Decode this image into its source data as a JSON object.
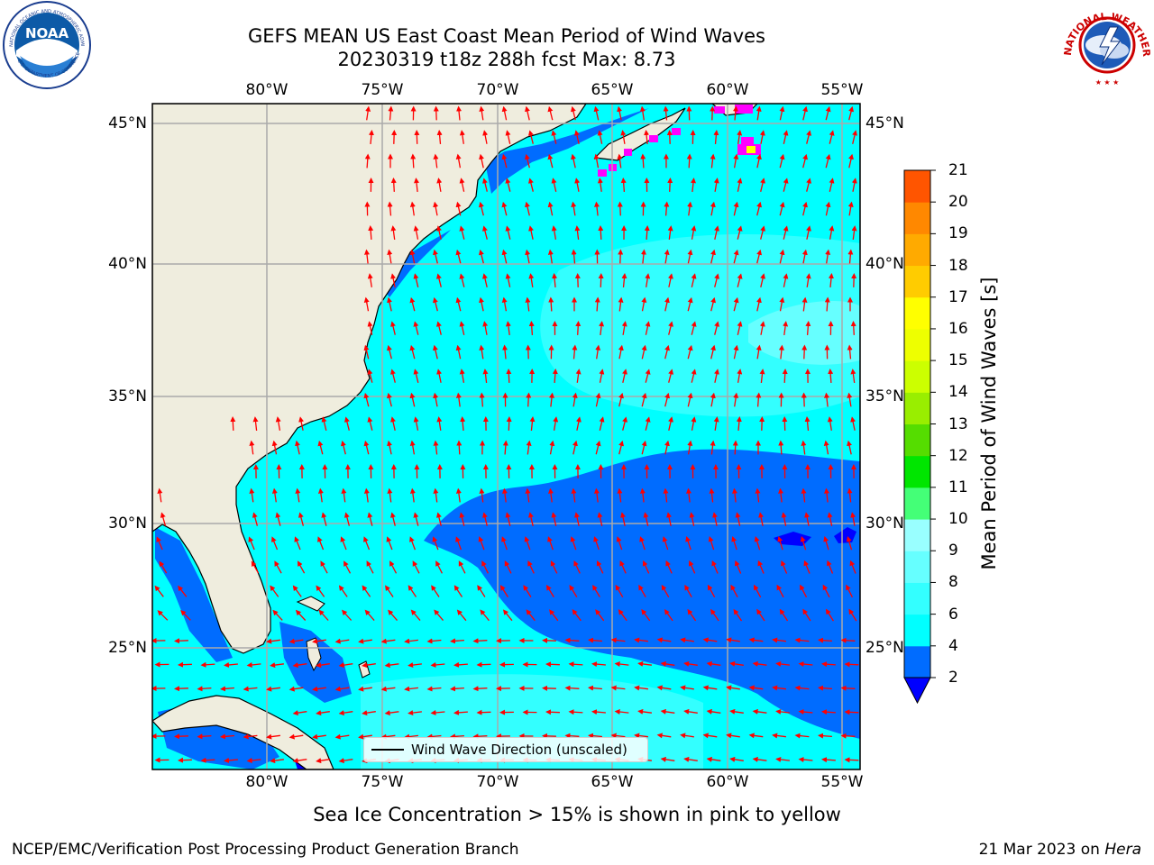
{
  "header": {
    "title_line1": "GEFS MEAN US East Coast Mean Period of Wind Waves",
    "title_line2": "20230319 t18z 288h fcst   Max: 8.73"
  },
  "logos": {
    "left": {
      "name": "NOAA",
      "arc_text": "NATIONAL OCEANIC AND ATMOSPHERIC ADMINISTRATION",
      "bottom_text": "U.S. DEPARTMENT OF COMMERCE"
    },
    "right": {
      "arc_text": "NATIONAL WEATHER SERVICE"
    }
  },
  "map": {
    "lon_labels": [
      "80°W",
      "75°W",
      "70°W",
      "65°W",
      "60°W",
      "55°W"
    ],
    "lat_labels": [
      "45°N",
      "40°N",
      "35°N",
      "30°N",
      "25°N"
    ],
    "extent": {
      "lon_min": -85,
      "lon_max": -54.2,
      "lat_min": 20.2,
      "lat_max": 45.8
    },
    "land_color": "#efedde",
    "grid_color": "#aaaaaa",
    "arrow_color": "#ff0000",
    "legend_label": "Wind Wave Direction (unscaled)",
    "sea_ice_note": "Sea Ice Concentration > 15% is shown in pink to yellow"
  },
  "colorbar": {
    "label": "Mean Period of Wind Waves [s]",
    "ticks": [
      "2",
      "4",
      "6",
      "8",
      "9",
      "10",
      "11",
      "12",
      "13",
      "14",
      "15",
      "16",
      "17",
      "18",
      "19",
      "20",
      "21"
    ],
    "colors": [
      "#006cff",
      "#00ffff",
      "#33ffff",
      "#66ffff",
      "#99ffff",
      "#44ff77",
      "#00e600",
      "#55dd00",
      "#99ee00",
      "#ccff00",
      "#eeff00",
      "#ffff00",
      "#ffcc00",
      "#ffaa00",
      "#ff8800",
      "#ff5500",
      "#ff2200",
      "#ff0000"
    ],
    "under_color": "#0000ff"
  },
  "footer": {
    "left": "NCEP/EMC/Verification Post Processing Product Generation Branch",
    "date": "21 Mar 2023 on",
    "host": "Hera"
  }
}
